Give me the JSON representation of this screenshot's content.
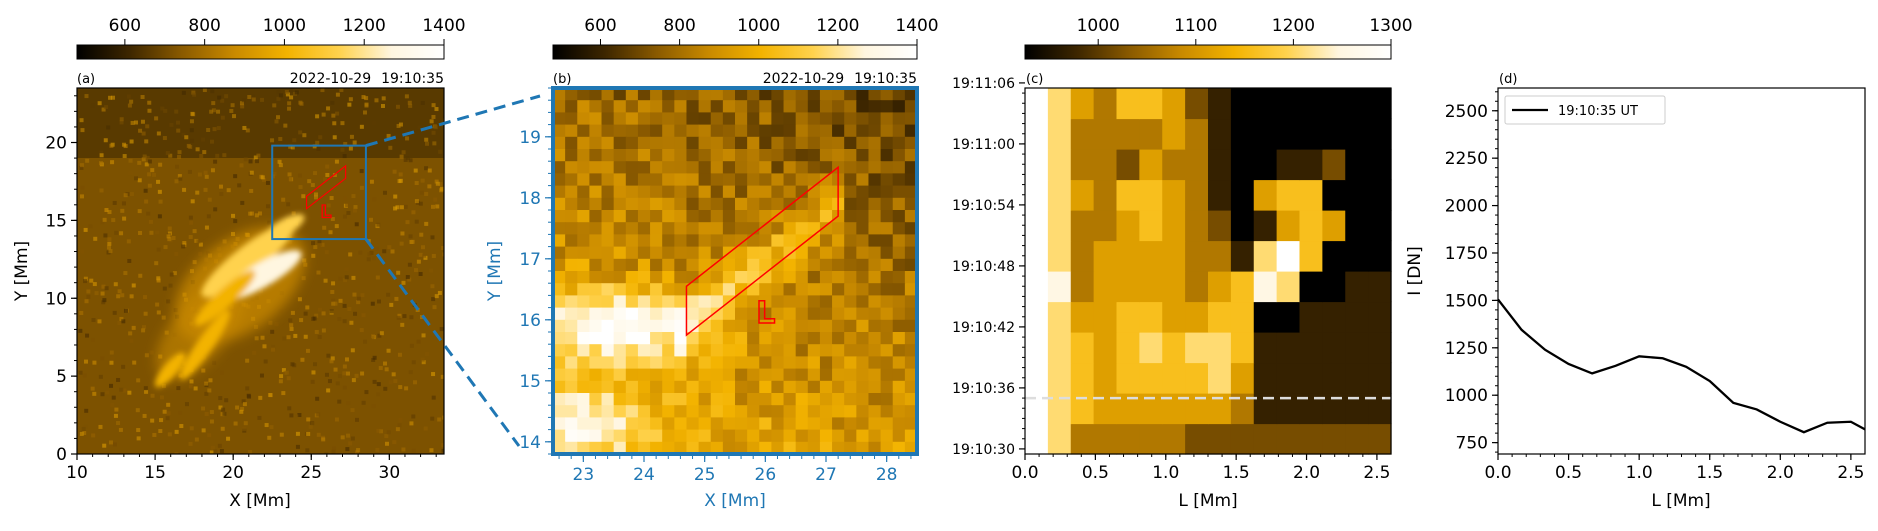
{
  "colors": {
    "cmap": [
      "#000000",
      "#3d2600",
      "#8a5a00",
      "#c98a00",
      "#f3b300",
      "#ffd24d",
      "#fff6e0",
      "#ffffff"
    ],
    "zoom_box": "#1f77b4",
    "slit": "#ff0000",
    "curve": "#000000"
  },
  "chart_data": [
    {
      "id": "a",
      "type": "heatmap",
      "panel_label": "(a)",
      "date": "2022-10-29",
      "time": "19:10:35",
      "xlabel": "X [Mm]",
      "ylabel": "Y [Mm]",
      "xlim": [
        10,
        33.5
      ],
      "ylim": [
        0,
        23.5
      ],
      "xticks": [
        "10",
        "15",
        "20",
        "25",
        "30"
      ],
      "yticks": [
        "0",
        "5",
        "10",
        "15",
        "20"
      ],
      "colorbar": {
        "range": [
          480,
          1400
        ],
        "ticks": [
          "600",
          "800",
          "1000",
          "1200",
          "1400"
        ]
      },
      "zoom_box": {
        "x": [
          22.5,
          28.5
        ],
        "y": [
          13.8,
          19.8
        ]
      },
      "slit_label": "L"
    },
    {
      "id": "b",
      "type": "heatmap",
      "panel_label": "(b)",
      "date": "2022-10-29",
      "time": "19:10:35",
      "xlabel": "X [Mm]",
      "ylabel": "Y [Mm]",
      "xlim": [
        22.5,
        28.5
      ],
      "ylim": [
        13.8,
        19.8
      ],
      "xticks": [
        "23",
        "24",
        "25",
        "26",
        "27",
        "28"
      ],
      "yticks": [
        "14",
        "15",
        "16",
        "17",
        "18",
        "19"
      ],
      "colorbar": {
        "range": [
          480,
          1400
        ],
        "ticks": [
          "600",
          "800",
          "1000",
          "1200",
          "1400"
        ]
      },
      "slit": [
        [
          24.7,
          16.55
        ],
        [
          24.7,
          15.75
        ],
        [
          27.2,
          17.7
        ],
        [
          27.2,
          18.5
        ]
      ],
      "slit_label": "L"
    },
    {
      "id": "c",
      "type": "heatmap",
      "panel_label": "(c)",
      "xlabel": "L [Mm]",
      "ylabel": "",
      "xlim": [
        0,
        2.6
      ],
      "xticks": [
        "0.0",
        "0.5",
        "1.0",
        "1.5",
        "2.0",
        "2.5"
      ],
      "ytick_labels": [
        "19:10:30",
        "19:10:36",
        "19:10:42",
        "19:10:48",
        "19:10:54",
        "19:11:00",
        "19:11:06"
      ],
      "colorbar": {
        "range": [
          925,
          1300
        ],
        "ticks": [
          "1000",
          "1100",
          "1200",
          "1300"
        ]
      },
      "dashed_time": "19:10:35"
    },
    {
      "id": "d",
      "type": "line",
      "panel_label": "(d)",
      "xlabel": "L [Mm]",
      "ylabel": "I [DN]",
      "xlim": [
        0,
        2.6
      ],
      "ylim": [
        690,
        2620
      ],
      "xticks": [
        "0.0",
        "0.5",
        "1.0",
        "1.5",
        "2.0",
        "2.5"
      ],
      "yticks": [
        "750",
        "1000",
        "1250",
        "1500",
        "1750",
        "2000",
        "2250",
        "2500"
      ],
      "legend": "19:10:35 UT",
      "legend_position": "top-left",
      "series": [
        {
          "name": "19:10:35 UT",
          "x": [
            0,
            0.167,
            0.333,
            0.5,
            0.667,
            0.833,
            1.0,
            1.167,
            1.333,
            1.5,
            1.667,
            1.833,
            2.0,
            2.167,
            2.333,
            2.5,
            2.6
          ],
          "y": [
            1505,
            1345,
            1240,
            1165,
            1115,
            1155,
            1205,
            1195,
            1150,
            1075,
            960,
            925,
            860,
            805,
            855,
            860,
            820
          ]
        }
      ]
    }
  ]
}
